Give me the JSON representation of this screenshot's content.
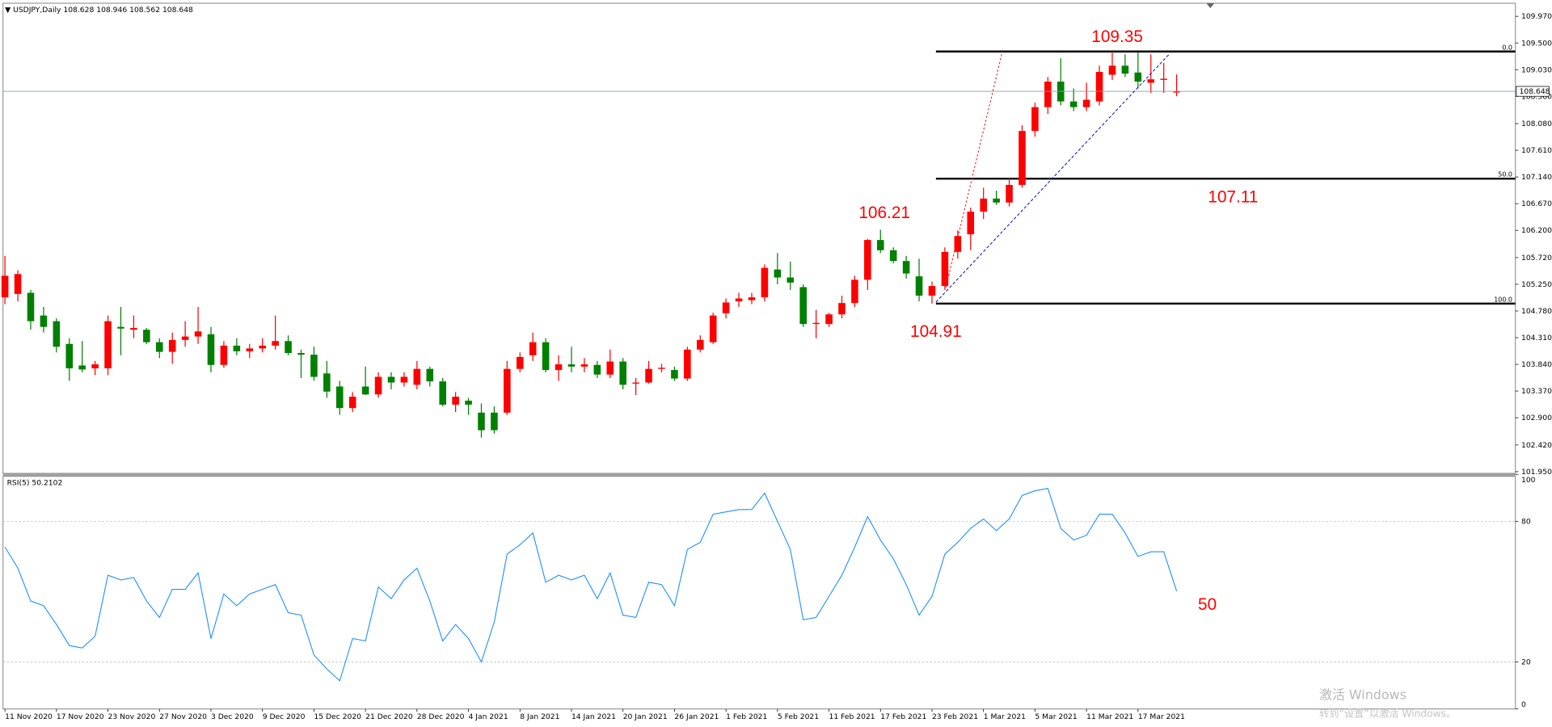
{
  "chart_data": {
    "type": "candlestick",
    "title": "USDJPY,Daily",
    "up_color": "#ff0000",
    "down_color": "#008000",
    "categories": [
      "11 Nov 2020",
      null,
      null,
      null,
      "17 Nov 2020",
      null,
      null,
      null,
      "23 Nov 2020",
      null,
      null,
      null,
      "27 Nov 2020",
      null,
      null,
      null,
      "3 Dec 2020",
      null,
      null,
      null,
      "9 Dec 2020",
      null,
      null,
      null,
      "15 Dec 2020",
      null,
      null,
      null,
      "21 Dec 2020",
      null,
      null,
      null,
      "28 Dec 2020",
      null,
      null,
      null,
      "4 Jan 2021",
      null,
      null,
      null,
      "8 Jan 2021",
      null,
      null,
      null,
      "14 Jan 2021",
      null,
      null,
      null,
      "20 Jan 2021",
      null,
      null,
      null,
      "26 Jan 2021",
      null,
      null,
      null,
      "1 Feb 2021",
      null,
      null,
      null,
      "5 Feb 2021",
      null,
      null,
      null,
      "11 Feb 2021",
      null,
      null,
      null,
      "17 Feb 2021",
      null,
      null,
      null,
      "23 Feb 2021",
      null,
      null,
      null,
      "1 Mar 2021",
      null,
      null,
      null,
      "5 Mar 2021",
      null,
      null,
      null,
      "11 Mar 2021",
      null,
      null,
      null,
      "17 Mar 2021",
      null,
      null,
      null
    ],
    "open": [
      105.02,
      105.08,
      105.1,
      104.7,
      104.6,
      104.2,
      103.82,
      103.77,
      103.77,
      104.5,
      104.45,
      104.45,
      104.23,
      104.06,
      104.27,
      104.33,
      104.37,
      103.83,
      104.17,
      104.07,
      104.12,
      104.17,
      104.25,
      104.04,
      104.01,
      103.68,
      103.45,
      103.07,
      103.45,
      103.31,
      103.62,
      103.52,
      103.48,
      103.76,
      103.54,
      103.13,
      103.2,
      102.99,
      102.99,
      102.99,
      103.76,
      104.0,
      104.23,
      103.74,
      103.84,
      103.8,
      103.83,
      103.66,
      103.89,
      103.5,
      103.52,
      103.76,
      103.74,
      103.59,
      104.1,
      104.23,
      104.74,
      104.95,
      104.97,
      105.02,
      105.51,
      105.37,
      105.2,
      104.55,
      104.55,
      104.72,
      104.92,
      105.33,
      106.03,
      105.85,
      105.66,
      105.39,
      105.05,
      105.22,
      105.82,
      106.13,
      106.53,
      106.76,
      106.69,
      107.0,
      107.95,
      108.37,
      108.82,
      108.47,
      108.37,
      108.47,
      108.94,
      109.1,
      108.98,
      108.8,
      108.85,
      108.628
    ],
    "high": [
      105.75,
      105.5,
      105.15,
      104.85,
      104.65,
      104.3,
      104.25,
      103.9,
      104.7,
      104.85,
      104.7,
      104.48,
      104.3,
      104.4,
      104.6,
      104.85,
      104.5,
      104.25,
      104.3,
      104.2,
      104.3,
      104.7,
      104.35,
      104.1,
      104.15,
      103.9,
      103.55,
      103.35,
      103.8,
      103.7,
      103.7,
      103.7,
      103.9,
      103.8,
      103.6,
      103.35,
      103.25,
      103.15,
      103.1,
      103.9,
      104.05,
      104.4,
      104.3,
      104.0,
      104.15,
      103.95,
      103.9,
      104.1,
      103.95,
      103.6,
      103.9,
      103.85,
      103.8,
      104.15,
      104.35,
      104.75,
      105.0,
      105.1,
      105.1,
      105.6,
      105.8,
      105.65,
      105.25,
      104.8,
      104.75,
      105.05,
      105.4,
      106.05,
      106.21,
      105.9,
      105.75,
      105.7,
      105.3,
      105.9,
      106.2,
      106.6,
      106.95,
      106.9,
      107.12,
      108.05,
      108.45,
      108.9,
      109.23,
      108.7,
      108.8,
      109.1,
      109.35,
      109.3,
      109.33,
      109.3,
      109.15,
      108.946
    ],
    "low": [
      104.9,
      104.95,
      104.45,
      104.4,
      104.05,
      103.55,
      103.7,
      103.65,
      103.65,
      104.0,
      104.3,
      104.2,
      103.95,
      103.85,
      104.15,
      104.2,
      103.7,
      103.78,
      104.0,
      103.95,
      104.05,
      104.1,
      104.0,
      103.6,
      103.55,
      103.25,
      102.95,
      103.0,
      103.3,
      103.25,
      103.4,
      103.45,
      103.4,
      103.45,
      103.1,
      103.0,
      102.95,
      102.55,
      102.62,
      102.95,
      103.7,
      103.9,
      103.7,
      103.55,
      103.7,
      103.7,
      103.6,
      103.6,
      103.4,
      103.3,
      103.5,
      103.7,
      103.55,
      103.55,
      104.05,
      104.2,
      104.65,
      104.85,
      104.9,
      104.95,
      105.25,
      105.15,
      104.5,
      104.3,
      104.5,
      104.65,
      104.85,
      105.15,
      105.8,
      105.62,
      105.35,
      104.95,
      104.91,
      105.15,
      105.7,
      105.85,
      106.4,
      106.65,
      106.62,
      106.95,
      107.85,
      108.25,
      108.4,
      108.3,
      108.3,
      108.4,
      108.85,
      108.9,
      108.7,
      108.62,
      108.62,
      108.562
    ],
    "close": [
      105.4,
      105.43,
      104.6,
      104.5,
      104.15,
      103.77,
      103.75,
      103.84,
      104.6,
      104.47,
      104.48,
      104.23,
      104.06,
      104.27,
      104.33,
      104.42,
      103.83,
      104.17,
      104.07,
      104.12,
      104.17,
      104.25,
      104.04,
      104.01,
      103.62,
      103.36,
      103.07,
      103.27,
      103.31,
      103.62,
      103.52,
      103.62,
      103.76,
      103.54,
      103.13,
      103.27,
      103.13,
      102.68,
      102.68,
      103.76,
      103.97,
      104.23,
      103.74,
      103.84,
      103.8,
      103.84,
      103.66,
      103.89,
      103.48,
      103.52,
      103.76,
      103.78,
      103.59,
      104.1,
      104.27,
      104.7,
      104.93,
      105.0,
      105.02,
      105.54,
      105.37,
      105.28,
      104.55,
      104.57,
      104.72,
      104.92,
      105.33,
      106.03,
      105.85,
      105.66,
      105.44,
      105.05,
      105.22,
      105.82,
      106.1,
      106.53,
      106.76,
      106.69,
      107.0,
      107.95,
      108.37,
      108.82,
      108.47,
      108.37,
      108.5,
      108.99,
      109.1,
      108.96,
      108.82,
      108.86,
      108.87,
      108.648
    ],
    "ylim": [
      101.92,
      110.2
    ],
    "yticks": [
      {
        "value": 109.97,
        "label": "109.970"
      },
      {
        "value": 109.5,
        "label": "109.500"
      },
      {
        "value": 109.03,
        "label": "109.030"
      },
      {
        "value": 108.56,
        "label": "108.560"
      },
      {
        "value": 108.08,
        "label": "108.080"
      },
      {
        "value": 107.61,
        "label": "107.610"
      },
      {
        "value": 107.14,
        "label": "107.140"
      },
      {
        "value": 106.67,
        "label": "106.670"
      },
      {
        "value": 106.2,
        "label": "106.200"
      },
      {
        "value": 105.72,
        "label": "105.720"
      },
      {
        "value": 105.25,
        "label": "105.250"
      },
      {
        "value": 104.78,
        "label": "104.780"
      },
      {
        "value": 104.31,
        "label": "104.310"
      },
      {
        "value": 103.84,
        "label": "103.840"
      },
      {
        "value": 103.37,
        "label": "103.370"
      },
      {
        "value": 102.9,
        "label": "102.900"
      },
      {
        "value": 102.42,
        "label": "102.420"
      },
      {
        "value": 101.95,
        "label": "101.950"
      }
    ],
    "fib_levels": [
      {
        "value": 109.35,
        "label": "0.0"
      },
      {
        "value": 107.11,
        "label": "50.0"
      },
      {
        "value": 104.91,
        "label": "100.0"
      }
    ],
    "annotations": [
      "109.35",
      "107.11",
      "106.21",
      "104.91",
      "50"
    ],
    "rsi": {
      "title": "RSI(5)",
      "color": "#1e90ff",
      "ylim": [
        0,
        100
      ],
      "yticks": [
        100,
        80,
        20,
        0
      ],
      "values": [
        69,
        60,
        46,
        44,
        36,
        27,
        26,
        31,
        57,
        55,
        56,
        46,
        39,
        51,
        51,
        58,
        30,
        49,
        44,
        49,
        51,
        53,
        41,
        40,
        23,
        17,
        12,
        30,
        29,
        52,
        47,
        55,
        60,
        46,
        29,
        36,
        30,
        20,
        37,
        66,
        70,
        75,
        54,
        57,
        55,
        57,
        47,
        58,
        40,
        39,
        54,
        53,
        44,
        68,
        71,
        83,
        84,
        85,
        85,
        92,
        80,
        68,
        38,
        39,
        48,
        57,
        69,
        82,
        72,
        64,
        53,
        40,
        48,
        66,
        71,
        77,
        81,
        76,
        81,
        91,
        93,
        94,
        77,
        72,
        74,
        83,
        83,
        75,
        65,
        67,
        67,
        50.2102
      ]
    },
    "watermark": [
      "激活 Windows",
      "转到“设置”以激活 Windows。"
    ]
  }
}
